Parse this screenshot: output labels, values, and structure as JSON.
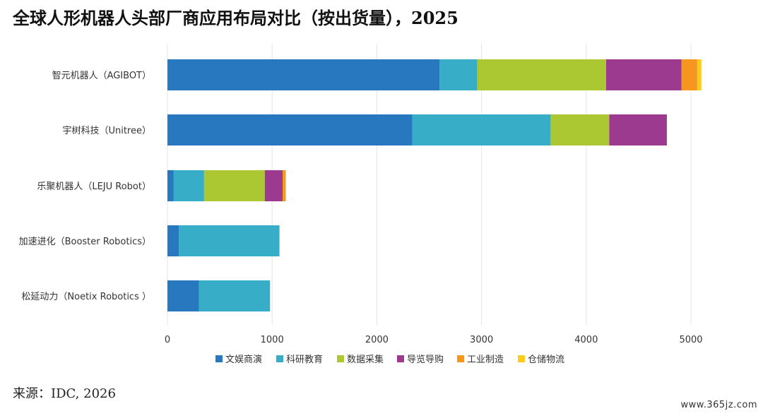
{
  "title": "全球人形机器人头部厂商应用布局对比（按出货量），2025",
  "source": "来源：IDC, 2026",
  "watermark": "www.365jz.com",
  "chart_data": {
    "type": "bar",
    "orientation": "horizontal",
    "stacked": true,
    "categories": [
      "智元机器人（AGIBOT）",
      "宇树科技（Unitree）",
      "乐聚机器人（LEJU Robot）",
      "加速进化（Booster Robotics）",
      "松延动力（Noetix Robotics ）"
    ],
    "series": [
      {
        "name": "文娱商演",
        "color": "#2878c0",
        "values": [
          2600,
          2340,
          60,
          110,
          300
        ]
      },
      {
        "name": "科研教育",
        "color": "#37adc8",
        "values": [
          360,
          1320,
          290,
          960,
          680
        ]
      },
      {
        "name": "数据采集",
        "color": "#abc832",
        "values": [
          1230,
          560,
          580,
          0,
          0
        ]
      },
      {
        "name": "导览导购",
        "color": "#9b3a8e",
        "values": [
          720,
          550,
          170,
          0,
          0
        ]
      },
      {
        "name": "工业制造",
        "color": "#f5961e",
        "values": [
          150,
          0,
          30,
          0,
          0
        ]
      },
      {
        "name": "仓储物流",
        "color": "#fccb1c",
        "values": [
          40,
          0,
          0,
          0,
          0
        ]
      }
    ],
    "x_ticks": [
      "0",
      "1000",
      "2000",
      "3000",
      "4000",
      "5000"
    ],
    "xlim": [
      0,
      5000
    ],
    "grid": "vertical",
    "legend_position": "bottom"
  }
}
